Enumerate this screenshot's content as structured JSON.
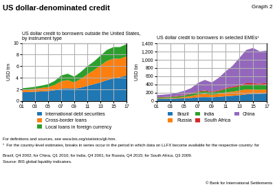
{
  "title": "US dollar-denominated credit",
  "annotations": [
    "Graph 2",
    "© Bank for International Settlements"
  ],
  "footnotes": [
    "For definitions and sources, see www.bis.org/statistics/gli.htm.",
    "¹  For the country-level estimates, breaks in series occur in the period in which data on LLFX become available for the respective country: for",
    "Brazil, Q4 2002; for China, Q1 2010; for India, Q4 2001; for Russia, Q4 2015; for South Africa, Q3 2009.",
    "Source: BIS global liquidity indicators."
  ],
  "chart_data": [
    {
      "type": "area",
      "stacked": true,
      "title": "US dollar credit to borrowers outside the United States,\nby instrument type",
      "y_label": "USD trn",
      "x": [
        2001,
        2002,
        2003,
        2004,
        2005,
        2006,
        2007,
        2008,
        2009,
        2010,
        2011,
        2012,
        2013,
        2014,
        2015,
        2016,
        2017
      ],
      "series": [
        {
          "name": "International debt securities",
          "values": [
            1.5,
            1.55,
            1.6,
            1.65,
            1.7,
            1.85,
            2.1,
            2.2,
            2.1,
            2.3,
            2.6,
            2.9,
            3.2,
            3.6,
            3.9,
            4.1,
            4.4
          ]
        },
        {
          "name": "Cross-border loans",
          "values": [
            0.4,
            0.45,
            0.5,
            0.6,
            0.7,
            0.9,
            1.3,
            1.4,
            1.1,
            1.5,
            2.0,
            2.4,
            2.9,
            3.3,
            3.4,
            3.2,
            3.3
          ]
        },
        {
          "name": "Local loans in foreign currency",
          "values": [
            0.3,
            0.3,
            0.35,
            0.4,
            0.5,
            0.7,
            1.0,
            1.1,
            1.0,
            1.2,
            1.4,
            1.5,
            1.7,
            1.9,
            2.0,
            2.0,
            2.1
          ]
        }
      ],
      "xlim": [
        2001,
        2017
      ],
      "xticks": [
        {
          "value": 2001,
          "label": "01"
        },
        {
          "value": 2003,
          "label": "03"
        },
        {
          "value": 2005,
          "label": "05"
        },
        {
          "value": 2007,
          "label": "07"
        },
        {
          "value": 2009,
          "label": "09"
        },
        {
          "value": 2011,
          "label": "11"
        },
        {
          "value": 2013,
          "label": "13"
        },
        {
          "value": 2015,
          "label": "15"
        },
        {
          "value": 2017,
          "label": "17"
        }
      ],
      "ylim": [
        0,
        10
      ],
      "yticks": [
        0,
        2,
        4,
        6,
        8,
        10
      ],
      "grid": true,
      "legend": "upper center"
    },
    {
      "type": "area",
      "stacked": true,
      "title": "US dollar credit to borrowers in selected EMEs¹",
      "y_label": "USD bn",
      "x": [
        2001,
        2002,
        2003,
        2004,
        2005,
        2006,
        2007,
        2008,
        2009,
        2010,
        2011,
        2012,
        2013,
        2014,
        2015,
        2016,
        2017
      ],
      "series": [
        {
          "name": "Brazil",
          "values": [
            50,
            55,
            55,
            60,
            65,
            75,
            90,
            95,
            90,
            100,
            115,
            125,
            140,
            160,
            175,
            175,
            180
          ]
        },
        {
          "name": "Russia",
          "values": [
            10,
            12,
            15,
            20,
            30,
            45,
            70,
            80,
            60,
            70,
            90,
            100,
            110,
            120,
            100,
            95,
            100
          ]
        },
        {
          "name": "India",
          "values": [
            20,
            22,
            25,
            30,
            35,
            45,
            60,
            65,
            60,
            70,
            85,
            95,
            105,
            115,
            120,
            115,
            125
          ]
        },
        {
          "name": "South Africa",
          "values": [
            10,
            10,
            12,
            13,
            14,
            15,
            18,
            18,
            17,
            18,
            22,
            25,
            30,
            35,
            35,
            33,
            32
          ]
        },
        {
          "name": "China",
          "values": [
            50,
            55,
            60,
            80,
            100,
            130,
            200,
            250,
            220,
            300,
            400,
            500,
            650,
            800,
            850,
            780,
            780
          ]
        }
      ],
      "xlim": [
        2001,
        2017
      ],
      "xticks": [
        {
          "value": 2001,
          "label": "01"
        },
        {
          "value": 2003,
          "label": "03"
        },
        {
          "value": 2005,
          "label": "05"
        },
        {
          "value": 2007,
          "label": "07"
        },
        {
          "value": 2009,
          "label": "09"
        },
        {
          "value": 2011,
          "label": "11"
        },
        {
          "value": 2013,
          "label": "13"
        },
        {
          "value": 2015,
          "label": "15"
        },
        {
          "value": 2017,
          "label": "17"
        }
      ],
      "ylim": [
        0,
        1400
      ],
      "yticks": [
        0,
        200,
        400,
        600,
        800,
        {
          "value": 1000,
          "label": "1,000"
        },
        {
          "value": 1200,
          "label": "1,200"
        },
        {
          "value": 1400,
          "label": "1,400"
        }
      ],
      "grid": true,
      "legend": "upper center"
    }
  ]
}
